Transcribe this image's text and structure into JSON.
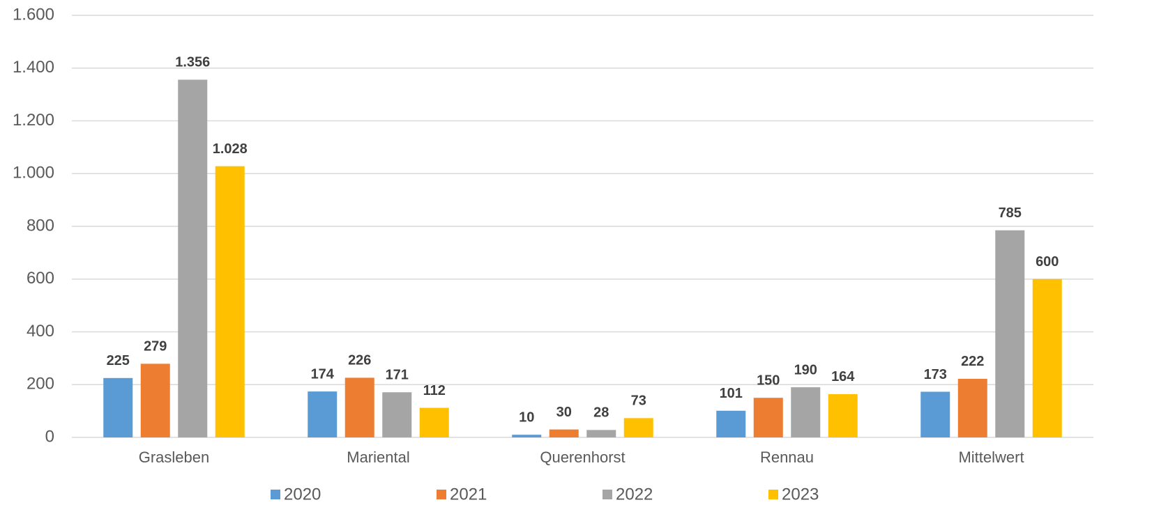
{
  "chart_data": {
    "type": "bar",
    "categories": [
      "Grasleben",
      "Mariental",
      "Querenhorst",
      "Rennau",
      "Mittelwert"
    ],
    "series": [
      {
        "name": "2020",
        "color": "#5b9bd5",
        "values": [
          225,
          174,
          10,
          101,
          173
        ]
      },
      {
        "name": "2021",
        "color": "#ed7d31",
        "values": [
          279,
          226,
          30,
          150,
          222
        ]
      },
      {
        "name": "2022",
        "color": "#a5a5a5",
        "values": [
          1356,
          171,
          28,
          190,
          785
        ],
        "value_labels": [
          "1.356",
          "171",
          "28",
          "190",
          "785"
        ]
      },
      {
        "name": "2023",
        "color": "#ffc000",
        "values": [
          1028,
          112,
          73,
          164,
          600
        ],
        "value_labels": [
          "1.028",
          "112",
          "73",
          "164",
          "600"
        ]
      }
    ],
    "ylim": [
      0,
      1600
    ],
    "yticks": [
      0,
      200,
      400,
      600,
      800,
      {
        "value": 1000,
        "label": "1.000"
      },
      {
        "value": 1200,
        "label": "1.200"
      },
      {
        "value": 1400,
        "label": "1.400"
      },
      {
        "value": 1600,
        "label": "1.600"
      }
    ],
    "grid": true,
    "legend": "bottom"
  }
}
